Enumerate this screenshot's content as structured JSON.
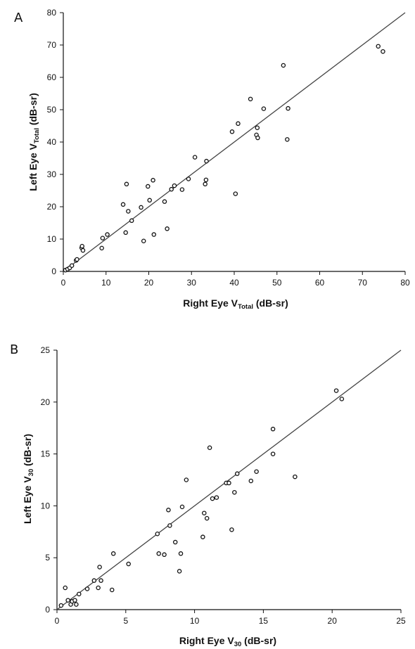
{
  "chart_data": [
    {
      "panel": "A",
      "type": "scatter",
      "title": "",
      "xlabel": "Right Eye V",
      "xlabel_sub": "Total",
      "xlabel_unit": " (dB-sr)",
      "ylabel": "Left Eye  V",
      "ylabel_sub": "Total",
      "ylabel_unit": " (dB-sr)",
      "xlim": [
        0,
        80
      ],
      "ylim": [
        0,
        80
      ],
      "xticks": [
        0,
        10,
        20,
        30,
        40,
        50,
        60,
        70,
        80
      ],
      "yticks": [
        0,
        10,
        20,
        30,
        40,
        50,
        60,
        70,
        80
      ],
      "grid": false,
      "reference_line": [
        [
          0,
          0
        ],
        [
          80,
          80
        ]
      ],
      "points": [
        [
          0.5,
          0.4
        ],
        [
          1,
          0.7
        ],
        [
          1.5,
          1.1
        ],
        [
          2,
          1.8
        ],
        [
          3,
          3.4
        ],
        [
          3.2,
          3.7
        ],
        [
          4.3,
          7.3
        ],
        [
          4.4,
          7.8
        ],
        [
          4.6,
          6.5
        ],
        [
          9,
          7.2
        ],
        [
          9.2,
          10.3
        ],
        [
          10.3,
          11.4
        ],
        [
          14,
          20.7
        ],
        [
          14.6,
          12
        ],
        [
          14.8,
          27
        ],
        [
          15.2,
          18.6
        ],
        [
          16,
          15.7
        ],
        [
          18.2,
          19.8
        ],
        [
          18.8,
          9.4
        ],
        [
          19.8,
          26.3
        ],
        [
          20.2,
          22
        ],
        [
          21,
          28.2
        ],
        [
          21.2,
          11.4
        ],
        [
          23.7,
          21.6
        ],
        [
          24.3,
          13.2
        ],
        [
          25.3,
          25.4
        ],
        [
          26,
          26.5
        ],
        [
          27.8,
          25.3
        ],
        [
          29.3,
          28.6
        ],
        [
          30.8,
          35.3
        ],
        [
          33.2,
          27
        ],
        [
          33.4,
          28.3
        ],
        [
          33.5,
          34.1
        ],
        [
          39.5,
          43.2
        ],
        [
          40.3,
          24
        ],
        [
          40.9,
          45.7
        ],
        [
          43.8,
          53.3
        ],
        [
          45.2,
          42.2
        ],
        [
          45.4,
          44.4
        ],
        [
          45.5,
          41.3
        ],
        [
          46.9,
          50.3
        ],
        [
          51.5,
          63.7
        ],
        [
          52.4,
          40.8
        ],
        [
          52.6,
          50.4
        ],
        [
          73.7,
          69.6
        ],
        [
          74.8,
          68
        ]
      ]
    },
    {
      "panel": "B",
      "type": "scatter",
      "title": "",
      "xlabel": "Right Eye V",
      "xlabel_sub": "30",
      "xlabel_unit": " (dB-sr)",
      "ylabel": "Left Eye V",
      "ylabel_sub": "30",
      "ylabel_unit": " (dB-sr)",
      "xlim": [
        0,
        25
      ],
      "ylim": [
        0,
        25
      ],
      "xticks": [
        0,
        5,
        10,
        15,
        20,
        25
      ],
      "yticks": [
        0,
        5,
        10,
        15,
        20,
        25
      ],
      "grid": false,
      "reference_line": [
        [
          0,
          0
        ],
        [
          25,
          25
        ]
      ],
      "points": [
        [
          0.3,
          0.4
        ],
        [
          0.6,
          2.1
        ],
        [
          0.8,
          0.9
        ],
        [
          1,
          0.5
        ],
        [
          1.1,
          0.8
        ],
        [
          1.3,
          0.9
        ],
        [
          1.4,
          0.5
        ],
        [
          1.6,
          1.5
        ],
        [
          2.2,
          2
        ],
        [
          2.7,
          2.8
        ],
        [
          3,
          2.1
        ],
        [
          3.1,
          4.1
        ],
        [
          3.2,
          2.8
        ],
        [
          4,
          1.9
        ],
        [
          4.1,
          5.4
        ],
        [
          5.2,
          4.4
        ],
        [
          7.3,
          7.3
        ],
        [
          7.4,
          5.4
        ],
        [
          7.8,
          5.3
        ],
        [
          8.1,
          9.6
        ],
        [
          8.2,
          8.1
        ],
        [
          8.6,
          6.5
        ],
        [
          8.9,
          3.7
        ],
        [
          9,
          5.4
        ],
        [
          9.1,
          9.9
        ],
        [
          9.4,
          12.5
        ],
        [
          10.6,
          7
        ],
        [
          10.7,
          9.3
        ],
        [
          10.9,
          8.8
        ],
        [
          11.1,
          15.6
        ],
        [
          11.3,
          10.7
        ],
        [
          11.6,
          10.8
        ],
        [
          12.3,
          12.2
        ],
        [
          12.5,
          12.2
        ],
        [
          12.7,
          7.7
        ],
        [
          12.9,
          11.3
        ],
        [
          13.1,
          13.1
        ],
        [
          14.1,
          12.4
        ],
        [
          14.5,
          13.3
        ],
        [
          15.7,
          17.4
        ],
        [
          15.7,
          15
        ],
        [
          17.3,
          12.8
        ],
        [
          20.3,
          21.1
        ],
        [
          20.7,
          20.3
        ]
      ]
    }
  ]
}
